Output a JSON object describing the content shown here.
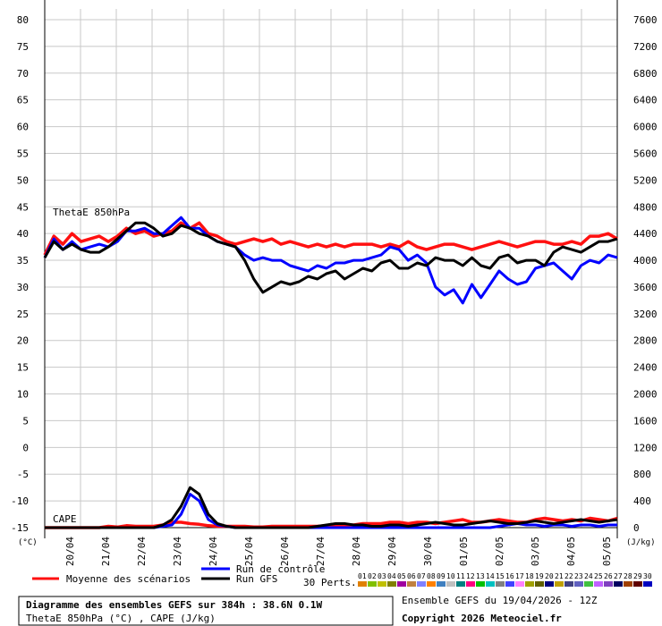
{
  "chart_data": {
    "type": "line",
    "left_axis": {
      "unit": "(°C)",
      "ticks": [
        80,
        75,
        70,
        65,
        60,
        55,
        50,
        45,
        40,
        35,
        30,
        25,
        20,
        15,
        10,
        5,
        0,
        -5,
        -10,
        -15
      ],
      "range": [
        -15,
        80
      ]
    },
    "right_axis": {
      "unit": "(J/kg)",
      "ticks": [
        7600,
        7200,
        6800,
        6400,
        6000,
        5600,
        5200,
        4800,
        4400,
        4000,
        3600,
        3200,
        2800,
        2400,
        2000,
        1600,
        1200,
        800,
        400,
        0
      ],
      "range": [
        0,
        7600
      ]
    },
    "x_labels": [
      "20/04",
      "21/04",
      "22/04",
      "23/04",
      "24/04",
      "25/04",
      "26/04",
      "27/04",
      "28/04",
      "29/04",
      "30/04",
      "01/05",
      "02/05",
      "03/05",
      "04/05",
      "05/05"
    ],
    "panel_labels": {
      "theta": "ThetaE 850hPa",
      "cape": "CAPE"
    },
    "series": [
      {
        "name": "Moyenne des scénarios",
        "color": "#ff1010",
        "theta_values": [
          36,
          39.5,
          38,
          40,
          38.5,
          39,
          39.5,
          38.5,
          39.5,
          41,
          40,
          40.5,
          39.5,
          40,
          40.5,
          42,
          41,
          42,
          40,
          39.5,
          38.5,
          38,
          38.5,
          39,
          38.5,
          39,
          38,
          38.5,
          38,
          37.5,
          38,
          37.5,
          38,
          37.5,
          38,
          38,
          38,
          37.5,
          38,
          37.5,
          38.5,
          37.5,
          37,
          37.5,
          38,
          38,
          37.5,
          37,
          37.5,
          38,
          38.5,
          38,
          37.5,
          38,
          38.5,
          38.5,
          38,
          38,
          38.5,
          38,
          39.5,
          39.5,
          40,
          39
        ],
        "cape_values": [
          0,
          0,
          0,
          0,
          0,
          0,
          0,
          20,
          10,
          30,
          20,
          20,
          20,
          40,
          80,
          80,
          60,
          50,
          30,
          20,
          20,
          20,
          20,
          10,
          10,
          20,
          20,
          20,
          20,
          20,
          20,
          30,
          30,
          40,
          40,
          60,
          60,
          60,
          80,
          80,
          60,
          80,
          80,
          60,
          80,
          100,
          120,
          80,
          80,
          100,
          120,
          100,
          80,
          80,
          120,
          140,
          120,
          100,
          120,
          100,
          140,
          120,
          100,
          140
        ]
      },
      {
        "name": "Run de contrôle",
        "color": "#0000ff",
        "theta_values": [
          35.5,
          39,
          37,
          38.5,
          37,
          37.5,
          38,
          37.5,
          38.5,
          40.5,
          40.5,
          41,
          40,
          40,
          41.5,
          43,
          41,
          41,
          39.5,
          38.5,
          38,
          37.5,
          36,
          35,
          35.5,
          35,
          35,
          34,
          33.5,
          33,
          34,
          33.5,
          34.5,
          34.5,
          35,
          35,
          35.5,
          36,
          37.5,
          37,
          35,
          36,
          34.5,
          30,
          28.5,
          29.5,
          27,
          30.5,
          28,
          30.5,
          33,
          31.5,
          30.5,
          31,
          33.5,
          34,
          34.5,
          33,
          31.5,
          34,
          35,
          34.5,
          36,
          35.5
        ],
        "cape_values": [
          0,
          0,
          0,
          0,
          0,
          0,
          0,
          0,
          0,
          0,
          0,
          0,
          0,
          20,
          40,
          200,
          500,
          400,
          120,
          40,
          20,
          0,
          0,
          0,
          0,
          0,
          0,
          0,
          0,
          0,
          0,
          0,
          0,
          0,
          0,
          0,
          0,
          0,
          0,
          0,
          0,
          0,
          0,
          0,
          0,
          0,
          0,
          0,
          0,
          0,
          20,
          40,
          60,
          40,
          40,
          20,
          40,
          40,
          20,
          40,
          40,
          20,
          40,
          40
        ]
      },
      {
        "name": "Run GFS",
        "color": "#000000",
        "theta_values": [
          35.5,
          38.5,
          37,
          38,
          37,
          36.5,
          36.5,
          37.5,
          39,
          40.5,
          42,
          42,
          41,
          39.5,
          40,
          41.5,
          41,
          40,
          39.5,
          38.5,
          38,
          37.5,
          35,
          31.5,
          29,
          30,
          31,
          30.5,
          31,
          32,
          31.5,
          32.5,
          33,
          31.5,
          32.5,
          33.5,
          33,
          34.5,
          35,
          33.5,
          33.5,
          34.5,
          34,
          35.5,
          35,
          35,
          34,
          35.5,
          34,
          33.5,
          35.5,
          36,
          34.5,
          35,
          35,
          34,
          36.5,
          37.5,
          37,
          36.5,
          37.5,
          38.5,
          38.5,
          39
        ],
        "cape_values": [
          0,
          0,
          0,
          0,
          0,
          0,
          0,
          0,
          0,
          0,
          0,
          0,
          0,
          40,
          120,
          320,
          600,
          500,
          200,
          60,
          20,
          0,
          0,
          0,
          0,
          0,
          0,
          0,
          0,
          0,
          20,
          40,
          60,
          60,
          40,
          40,
          20,
          20,
          40,
          40,
          20,
          40,
          60,
          80,
          60,
          40,
          40,
          60,
          80,
          100,
          80,
          60,
          60,
          80,
          100,
          80,
          60,
          80,
          100,
          120,
          100,
          80,
          100,
          120
        ]
      }
    ],
    "perturbations": {
      "count": 30,
      "label": "30 Perts.",
      "member_labels": [
        "01",
        "02",
        "03",
        "04",
        "05",
        "06",
        "07",
        "08",
        "09",
        "10",
        "11",
        "12",
        "13",
        "14",
        "15",
        "16",
        "17",
        "18",
        "19",
        "20",
        "21",
        "22",
        "23",
        "24",
        "25",
        "26",
        "27",
        "28",
        "29",
        "30"
      ],
      "colors": [
        "#e08000",
        "#80c000",
        "#c0c000",
        "#808000",
        "#a000a0",
        "#c08040",
        "#8080ff",
        "#ff8000",
        "#4080c0",
        "#c0c0c0",
        "#008080",
        "#ff0080",
        "#00c000",
        "#00c0c0",
        "#808080",
        "#4040ff",
        "#ff80ff",
        "#a0a000",
        "#606000",
        "#000080",
        "#c0a000",
        "#404080",
        "#6060c0",
        "#40c040",
        "#c060ff",
        "#8040c0",
        "#000060",
        "#a04000",
        "#600000",
        "#0000c0"
      ]
    }
  },
  "legend": {
    "mean": "Moyenne des scénarios",
    "control": "Run de contrôle",
    "gfs": "Run GFS",
    "perts": "30 Perts."
  },
  "footer": {
    "title": "Diagramme des ensembles GEFS sur 384h : 38.6N 0.1W",
    "subtitle": "ThetaE 850hPa (°C) , CAPE (J/kg)",
    "run": "Ensemble GEFS du 19/04/2026 - 12Z",
    "copyright": "Copyright 2026 Meteociel.fr"
  }
}
